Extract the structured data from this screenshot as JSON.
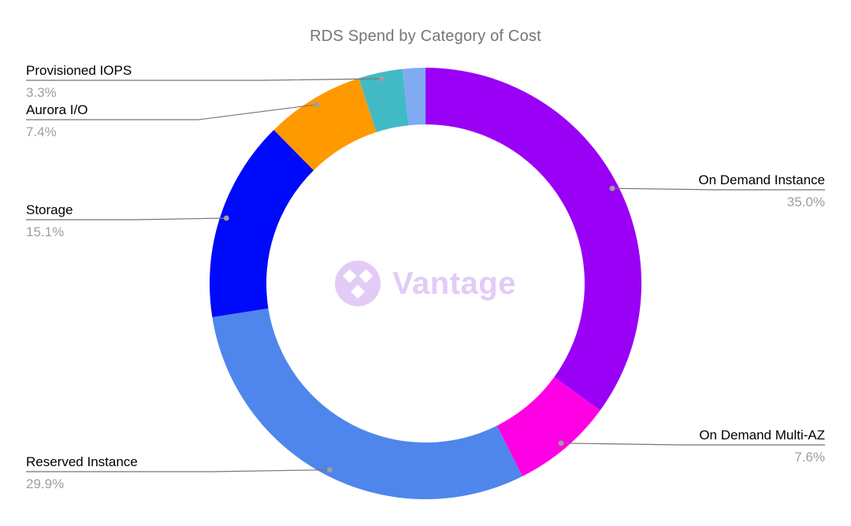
{
  "chart_data": {
    "type": "pie",
    "subtype": "donut",
    "title": "RDS Spend by Category of Cost",
    "unit": "percent",
    "total": 100.0,
    "inner_radius_ratio": 0.74,
    "start_angle_deg": 0,
    "direction": "clockwise",
    "slices": [
      {
        "label": "On Demand Instance",
        "value": 35.0,
        "display": "35.0%",
        "color": "#9A00F5"
      },
      {
        "label": "On Demand Multi-AZ",
        "value": 7.6,
        "display": "7.6%",
        "color": "#FF00E5"
      },
      {
        "label": "Reserved Instance",
        "value": 29.9,
        "display": "29.9%",
        "color": "#4E86EC"
      },
      {
        "label": "Storage",
        "value": 15.1,
        "display": "15.1%",
        "color": "#000AFA"
      },
      {
        "label": "Aurora I/O",
        "value": 7.4,
        "display": "7.4%",
        "color": "#FF9900"
      },
      {
        "label": "Provisioned IOPS",
        "value": 3.3,
        "display": "3.3%",
        "color": "#42BAC6"
      },
      {
        "label": "",
        "value": 1.7,
        "display": "",
        "color": "#80ABF3"
      }
    ]
  },
  "watermark": {
    "brand": "Vantage"
  },
  "colors": {
    "background": "#FFFFFF",
    "title_text": "#757575",
    "label_text": "#000000",
    "percent_text": "#9E9E9E",
    "leader_line": "#757575",
    "leader_dot": "#9E9E9E",
    "watermark": "#E2CCF6"
  }
}
